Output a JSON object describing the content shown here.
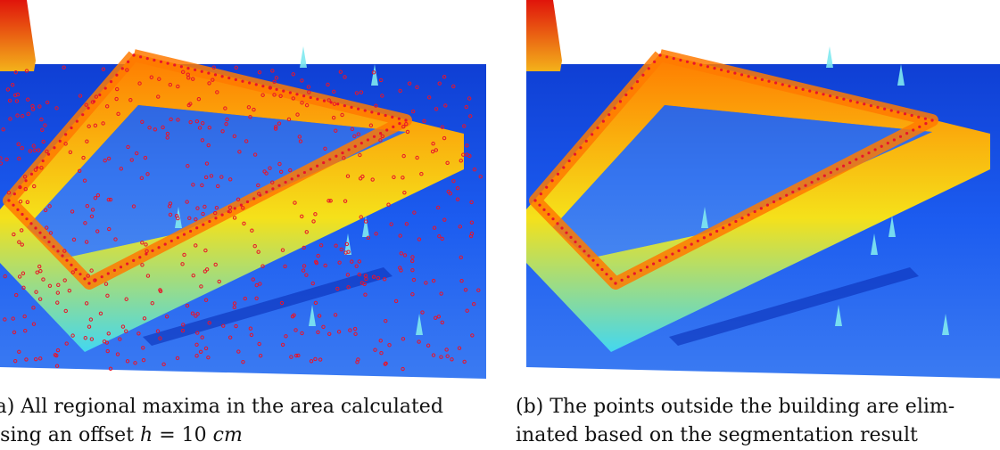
{
  "figure": {
    "panels": [
      {
        "id": "a",
        "show_points": "all",
        "caption": {
          "label": "(a)",
          "line1": "All regional maxima in the area calculated",
          "line2_prefix": "using an offset",
          "math_var": "h",
          "math_eq": " = 10 ",
          "math_unit": "cm"
        }
      },
      {
        "id": "b",
        "show_points": "building",
        "caption": {
          "label": "(b)",
          "line1": "The points outside the building are elim-",
          "line2": "inated based on the segmentation result"
        }
      }
    ],
    "colors": {
      "ground": "#1c5cf0",
      "ground_dark": "#0f3fd4",
      "ridge_low": "#43d7f0",
      "ridge_mid": "#f5e11a",
      "ridge_top": "#ff7a00",
      "peak": "#e0140b",
      "marker": "#e8142b"
    }
  }
}
